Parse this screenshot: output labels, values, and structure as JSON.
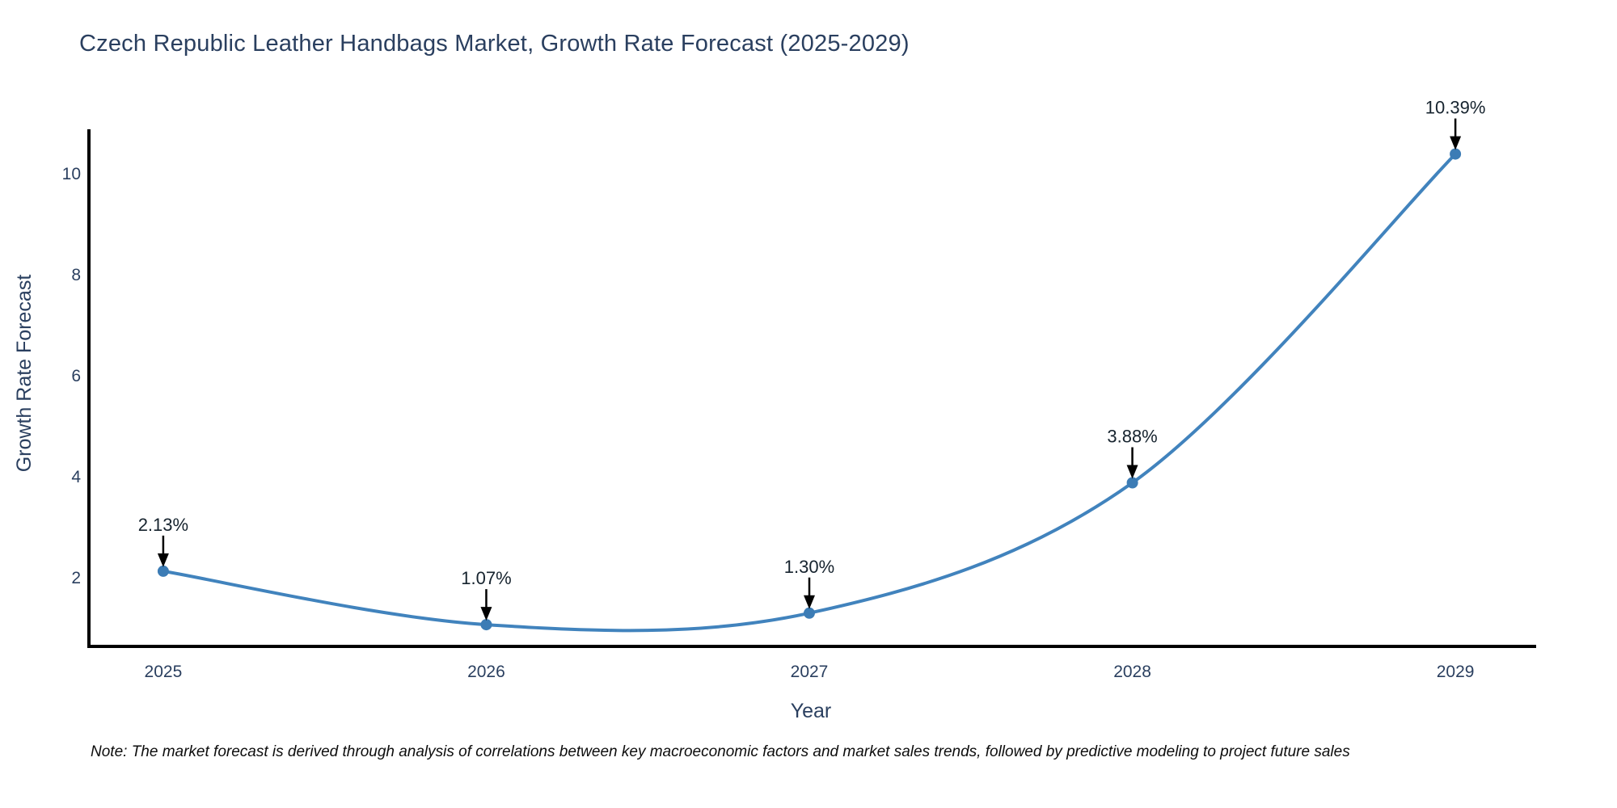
{
  "chart_data": {
    "type": "line",
    "title": "Czech Republic Leather Handbags Market, Growth Rate Forecast (2025-2029)",
    "xlabel": "Year",
    "ylabel": "Growth Rate Forecast",
    "x": [
      2025,
      2026,
      2027,
      2028,
      2029
    ],
    "values": [
      2.13,
      1.07,
      1.3,
      3.88,
      10.39
    ],
    "point_labels": [
      "2.13%",
      "1.07%",
      "1.30%",
      "3.88%",
      "10.39%"
    ],
    "xtick_labels": [
      "2025",
      "2026",
      "2027",
      "2028",
      "2029"
    ],
    "ytick_values": [
      2,
      4,
      6,
      8,
      10
    ],
    "ytick_labels": [
      "2",
      "4",
      "6",
      "8",
      "10"
    ],
    "xlim": [
      2024.77,
      2029.25
    ],
    "ylim": [
      0.64,
      10.88
    ],
    "grid": false,
    "legend": "none",
    "line_shape": "spline",
    "colors": {
      "line": "#4183bd",
      "marker": "#3c7cb5",
      "axis": "#000000",
      "title": "#2a3f5f",
      "tick": "#2a3f5f",
      "annotation_text": "#16232e",
      "annotation_arrow": "#000000"
    },
    "note": "Note: The market forecast is derived through analysis of correlations between key macroeconomic factors and market sales trends, followed by predictive modeling to project future sales"
  }
}
